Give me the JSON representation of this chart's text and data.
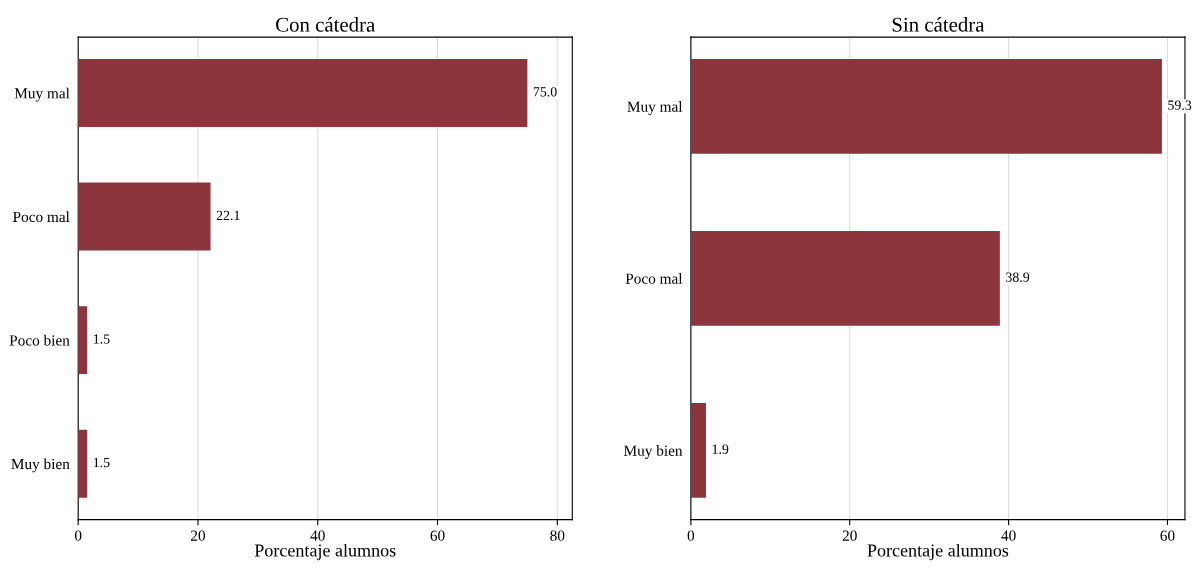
{
  "chart_data": [
    {
      "type": "bar",
      "orientation": "horizontal",
      "title": "Con cátedra",
      "xlabel": "Porcentaje alumnos",
      "categories": [
        "Muy mal",
        "Poco mal",
        "Poco bien",
        "Muy bien"
      ],
      "values": [
        75.0,
        22.1,
        1.5,
        1.5
      ],
      "value_labels": [
        "75.0",
        "22.1",
        "1.5",
        "1.5"
      ],
      "color": "#8c353d",
      "xlim": [
        0,
        82.5
      ],
      "xticks": [
        0,
        20,
        40,
        60,
        80
      ],
      "grid": "x"
    },
    {
      "type": "bar",
      "orientation": "horizontal",
      "title": "Sin cátedra",
      "xlabel": "Porcentaje alumnos",
      "categories": [
        "Muy mal",
        "Poco mal",
        "Muy bien"
      ],
      "values": [
        59.3,
        38.9,
        1.9
      ],
      "value_labels": [
        "59.3",
        "38.9",
        "1.9"
      ],
      "color": "#8c353d",
      "xlim": [
        0,
        62.2
      ],
      "xticks": [
        0,
        20,
        40,
        60
      ],
      "grid": "x"
    }
  ]
}
